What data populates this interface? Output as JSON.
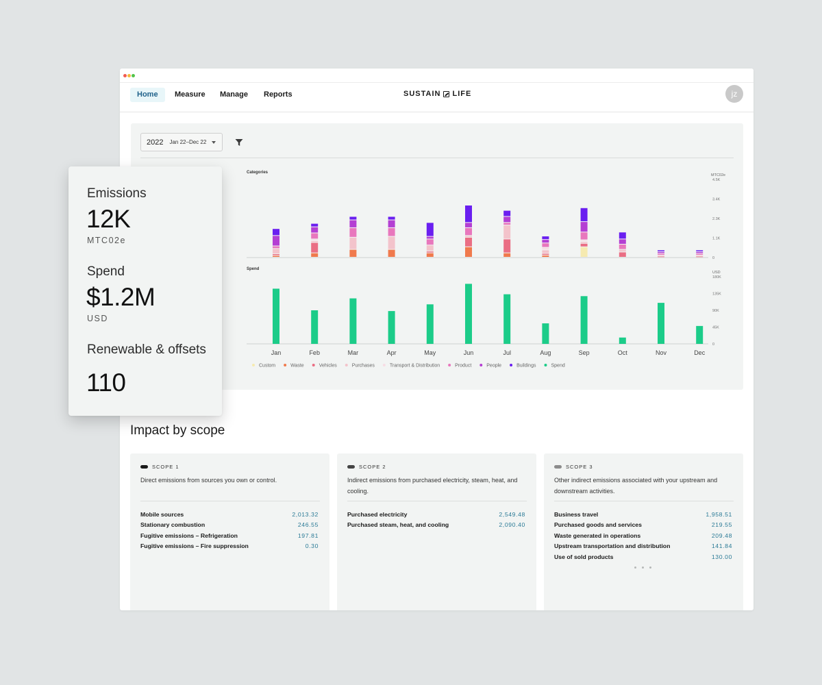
{
  "nav": {
    "items": [
      {
        "label": "Home",
        "active": true
      },
      {
        "label": "Measure",
        "active": false
      },
      {
        "label": "Manage",
        "active": false
      },
      {
        "label": "Reports",
        "active": false
      }
    ],
    "brand_left": "SUSTAIN",
    "brand_right": "LIFE",
    "avatar": "jz"
  },
  "filters": {
    "year": "2022",
    "range": "Jan 22–Dec 22"
  },
  "stats": {
    "emissions_label": "Emissions",
    "emissions_value": "12K",
    "emissions_unit": "MTC02e",
    "spend_label": "Spend",
    "spend_value": "$1.2M",
    "spend_unit": "USD",
    "renewable_label": "Renewable & offsets",
    "renewable_value": "110"
  },
  "chart_data": [
    {
      "type": "bar",
      "stacked": true,
      "title": "Categories",
      "ylabel": "MTC02e",
      "ylim": [
        0,
        4500
      ],
      "yticks": [
        "4.5K",
        "3.4K",
        "2.3K",
        "1.1K",
        "0"
      ],
      "categories": [
        "Jan",
        "Feb",
        "Mar",
        "Apr",
        "May",
        "Jun",
        "Jul",
        "Aug",
        "Sep",
        "Oct",
        "Nov",
        "Dec"
      ],
      "series": [
        {
          "name": "Custom",
          "color": "#f6eab0",
          "values": [
            0,
            0,
            0,
            0,
            0,
            0,
            0,
            0,
            600,
            0,
            0,
            0
          ]
        },
        {
          "name": "Waste",
          "color": "#f07a4d",
          "values": [
            100,
            250,
            450,
            450,
            250,
            600,
            250,
            120,
            0,
            0,
            0,
            0
          ]
        },
        {
          "name": "Vehicles",
          "color": "#ea6e84",
          "values": [
            100,
            600,
            0,
            0,
            100,
            550,
            800,
            100,
            200,
            300,
            60,
            60
          ]
        },
        {
          "name": "Purchases",
          "color": "#f3c3cb",
          "values": [
            300,
            100,
            700,
            750,
            350,
            100,
            800,
            200,
            100,
            150,
            60,
            60
          ]
        },
        {
          "name": "Transport & Distribution",
          "color": "#f7dde4",
          "values": [
            0,
            100,
            0,
            0,
            0,
            0,
            0,
            150,
            100,
            0,
            0,
            0
          ]
        },
        {
          "name": "Product",
          "color": "#e877bd",
          "values": [
            150,
            350,
            550,
            500,
            350,
            450,
            150,
            250,
            450,
            300,
            100,
            100
          ]
        },
        {
          "name": "People",
          "color": "#b43fd3",
          "values": [
            600,
            350,
            450,
            450,
            150,
            300,
            350,
            200,
            600,
            300,
            100,
            100
          ]
        },
        {
          "name": "Buildings",
          "color": "#6a1ff0",
          "values": [
            400,
            200,
            200,
            200,
            800,
            1000,
            350,
            200,
            800,
            400,
            100,
            100
          ]
        }
      ]
    },
    {
      "type": "bar",
      "title": "Spend",
      "ylabel": "USD",
      "ylim": [
        0,
        180000
      ],
      "yticks": [
        "180K",
        "135K",
        "90K",
        "45K",
        "0"
      ],
      "categories": [
        "Jan",
        "Feb",
        "Mar",
        "Apr",
        "May",
        "Jun",
        "Jul",
        "Aug",
        "Sep",
        "Oct",
        "Nov",
        "Dec"
      ],
      "series": [
        {
          "name": "Spend",
          "color": "#1ccc89",
          "values": [
            148000,
            90000,
            122000,
            88000,
            106000,
            161000,
            133000,
            55000,
            128000,
            17000,
            110000,
            48000
          ]
        }
      ]
    }
  ],
  "legend": [
    {
      "name": "Custom",
      "color": "#f6eab0"
    },
    {
      "name": "Waste",
      "color": "#f07a4d"
    },
    {
      "name": "Vehicles",
      "color": "#ea6e84"
    },
    {
      "name": "Purchases",
      "color": "#f3c3cb"
    },
    {
      "name": "Transport & Distribution",
      "color": "#f7dde4"
    },
    {
      "name": "Product",
      "color": "#e877bd"
    },
    {
      "name": "People",
      "color": "#b43fd3"
    },
    {
      "name": "Buildings",
      "color": "#6a1ff0"
    },
    {
      "name": "Spend",
      "color": "#1ccc89"
    }
  ],
  "impact": {
    "title": "Impact by scope",
    "scopes": [
      {
        "label": "SCOPE 1",
        "pill_color": "#1a1a1a",
        "description": "Direct emissions from sources you own or control.",
        "rows": [
          {
            "name": "Mobile sources",
            "value": "2,013.32"
          },
          {
            "name": "Stationary combustion",
            "value": "246.55"
          },
          {
            "name": "Fugitive emissions – Refrigeration",
            "value": "197.81"
          },
          {
            "name": "Fugitive emissions – Fire suppression",
            "value": "0.30"
          }
        ]
      },
      {
        "label": "SCOPE 2",
        "pill_color": "#444444",
        "description": "Indirect emissions from purchased electricity, steam, heat, and cooling.",
        "rows": [
          {
            "name": "Purchased electricity",
            "value": "2,549.48"
          },
          {
            "name": "Purchased steam, heat, and cooling",
            "value": "2,090.40"
          }
        ]
      },
      {
        "label": "SCOPE 3",
        "pill_color": "#8c8c8c",
        "description": "Other indirect emissions associated with your upstream and downstream activities.",
        "rows": [
          {
            "name": "Business travel",
            "value": "1,958.51"
          },
          {
            "name": "Purchased goods and services",
            "value": "219.55"
          },
          {
            "name": "Waste generated in operations",
            "value": "209.48"
          },
          {
            "name": "Upstream transportation and distribution",
            "value": "141.84"
          },
          {
            "name": "Use of sold products",
            "value": "130.00"
          }
        ]
      }
    ]
  }
}
